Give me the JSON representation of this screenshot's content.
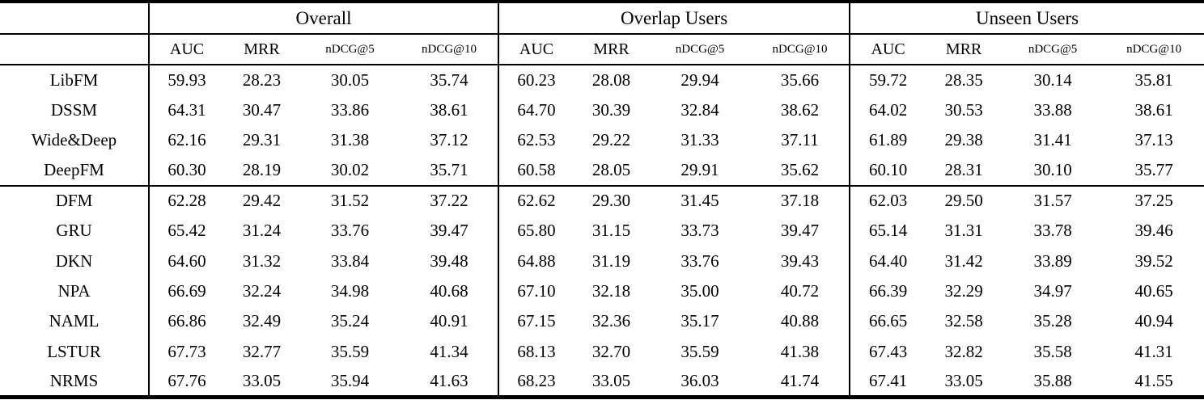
{
  "table": {
    "groups": [
      "Overall",
      "Overlap Users",
      "Unseen Users"
    ],
    "metrics": [
      "AUC",
      "MRR",
      "nDCG@5",
      "nDCG@10"
    ],
    "rows": [
      {
        "name": "LibFM",
        "overall": [
          "59.93",
          "28.23",
          "30.05",
          "35.74"
        ],
        "overlap": [
          "60.23",
          "28.08",
          "29.94",
          "35.66"
        ],
        "unseen": [
          "59.72",
          "28.35",
          "30.14",
          "35.81"
        ],
        "section_end": false
      },
      {
        "name": "DSSM",
        "overall": [
          "64.31",
          "30.47",
          "33.86",
          "38.61"
        ],
        "overlap": [
          "64.70",
          "30.39",
          "32.84",
          "38.62"
        ],
        "unseen": [
          "64.02",
          "30.53",
          "33.88",
          "38.61"
        ],
        "section_end": false
      },
      {
        "name": "Wide&Deep",
        "overall": [
          "62.16",
          "29.31",
          "31.38",
          "37.12"
        ],
        "overlap": [
          "62.53",
          "29.22",
          "31.33",
          "37.11"
        ],
        "unseen": [
          "61.89",
          "29.38",
          "31.41",
          "37.13"
        ],
        "section_end": false
      },
      {
        "name": "DeepFM",
        "overall": [
          "60.30",
          "28.19",
          "30.02",
          "35.71"
        ],
        "overlap": [
          "60.58",
          "28.05",
          "29.91",
          "35.62"
        ],
        "unseen": [
          "60.10",
          "28.31",
          "30.10",
          "35.77"
        ],
        "section_end": true
      },
      {
        "name": "DFM",
        "overall": [
          "62.28",
          "29.42",
          "31.52",
          "37.22"
        ],
        "overlap": [
          "62.62",
          "29.30",
          "31.45",
          "37.18"
        ],
        "unseen": [
          "62.03",
          "29.50",
          "31.57",
          "37.25"
        ],
        "section_end": false
      },
      {
        "name": "GRU",
        "overall": [
          "65.42",
          "31.24",
          "33.76",
          "39.47"
        ],
        "overlap": [
          "65.80",
          "31.15",
          "33.73",
          "39.47"
        ],
        "unseen": [
          "65.14",
          "31.31",
          "33.78",
          "39.46"
        ],
        "section_end": false
      },
      {
        "name": "DKN",
        "overall": [
          "64.60",
          "31.32",
          "33.84",
          "39.48"
        ],
        "overlap": [
          "64.88",
          "31.19",
          "33.76",
          "39.43"
        ],
        "unseen": [
          "64.40",
          "31.42",
          "33.89",
          "39.52"
        ],
        "section_end": false
      },
      {
        "name": "NPA",
        "overall": [
          "66.69",
          "32.24",
          "34.98",
          "40.68"
        ],
        "overlap": [
          "67.10",
          "32.18",
          "35.00",
          "40.72"
        ],
        "unseen": [
          "66.39",
          "32.29",
          "34.97",
          "40.65"
        ],
        "section_end": false
      },
      {
        "name": "NAML",
        "overall": [
          "66.86",
          "32.49",
          "35.24",
          "40.91"
        ],
        "overlap": [
          "67.15",
          "32.36",
          "35.17",
          "40.88"
        ],
        "unseen": [
          "66.65",
          "32.58",
          "35.28",
          "40.94"
        ],
        "section_end": false
      },
      {
        "name": "LSTUR",
        "overall": [
          "67.73",
          "32.77",
          "35.59",
          "41.34"
        ],
        "overlap": [
          "68.13",
          "32.70",
          "35.59",
          "41.38"
        ],
        "unseen": [
          "67.43",
          "32.82",
          "35.58",
          "41.31"
        ],
        "section_end": false
      },
      {
        "name": "NRMS",
        "overall": [
          "67.76",
          "33.05",
          "35.94",
          "41.63"
        ],
        "overlap": [
          "68.23",
          "33.05",
          "36.03",
          "41.74"
        ],
        "unseen": [
          "67.41",
          "33.05",
          "35.88",
          "41.55"
        ],
        "section_end": false
      }
    ]
  }
}
